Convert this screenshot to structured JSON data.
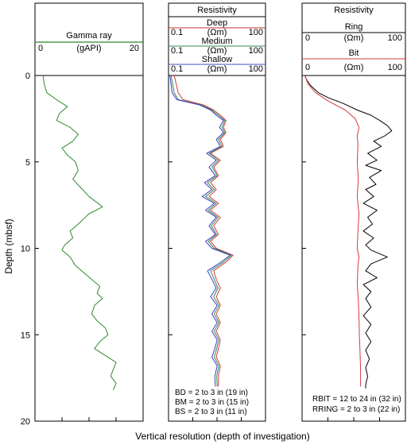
{
  "chart_data": [
    {
      "type": "line",
      "title": "Gamma ray",
      "unit": "(gAPI)",
      "xlim": [
        0,
        20
      ],
      "x_tick_labels": [
        "0",
        "20"
      ],
      "ylabel": "Depth (mbsf)",
      "ylim": [
        0,
        20
      ],
      "y_tick_labels": [
        "0",
        "5",
        "10",
        "15",
        "20"
      ],
      "series": [
        {
          "name": "Gamma ray",
          "color": "#2e8b2e",
          "points": [
            [
              1.5,
              0.0
            ],
            [
              1.7,
              0.5
            ],
            [
              2.2,
              1.0
            ],
            [
              4.0,
              1.4
            ],
            [
              6.0,
              1.8
            ],
            [
              4.5,
              2.2
            ],
            [
              4.0,
              2.6
            ],
            [
              6.5,
              3.0
            ],
            [
              8.0,
              3.4
            ],
            [
              7.0,
              3.8
            ],
            [
              5.0,
              4.2
            ],
            [
              6.0,
              4.6
            ],
            [
              7.5,
              5.0
            ],
            [
              8.0,
              5.5
            ],
            [
              7.0,
              6.0
            ],
            [
              8.5,
              6.5
            ],
            [
              10.0,
              7.0
            ],
            [
              12.5,
              7.6
            ],
            [
              10.0,
              8.0
            ],
            [
              8.0,
              8.6
            ],
            [
              6.5,
              9.0
            ],
            [
              7.0,
              9.4
            ],
            [
              5.5,
              9.8
            ],
            [
              5.0,
              10.1
            ],
            [
              6.5,
              10.5
            ],
            [
              7.5,
              11.0
            ],
            [
              9.0,
              11.4
            ],
            [
              10.5,
              11.8
            ],
            [
              12.0,
              12.2
            ],
            [
              11.5,
              12.6
            ],
            [
              12.5,
              12.9
            ],
            [
              11.0,
              13.3
            ],
            [
              10.5,
              13.8
            ],
            [
              11.5,
              14.2
            ],
            [
              13.0,
              14.6
            ],
            [
              13.5,
              15.0
            ],
            [
              12.0,
              15.4
            ],
            [
              11.0,
              15.8
            ],
            [
              13.0,
              16.2
            ],
            [
              15.0,
              16.6
            ],
            [
              14.5,
              17.0
            ],
            [
              14.0,
              17.4
            ],
            [
              15.0,
              17.8
            ],
            [
              14.5,
              18.2
            ]
          ]
        }
      ]
    },
    {
      "type": "line",
      "title": "Resistivity",
      "xscale": "log",
      "xlim": [
        0.1,
        100
      ],
      "ylim": [
        0,
        20
      ],
      "headers": [
        {
          "name": "Deep",
          "color": "#c83232",
          "unit": "(Ωm)",
          "min": "0.1",
          "max": "100"
        },
        {
          "name": "Medium",
          "color": "#2e8b57",
          "unit": "(Ωm)",
          "min": "0.1",
          "max": "100"
        },
        {
          "name": "Shallow",
          "color": "#3c4fc8",
          "unit": "(Ωm)",
          "min": "0.1",
          "max": "100"
        }
      ],
      "series": [
        {
          "name": "Deep",
          "color": "#d23c3c",
          "points": [
            [
              0.15,
              0.0
            ],
            [
              0.2,
              1.0
            ],
            [
              0.28,
              1.4
            ],
            [
              1.2,
              1.7
            ],
            [
              2.5,
              2.0
            ],
            [
              4.0,
              2.3
            ],
            [
              6.0,
              2.6
            ],
            [
              5.0,
              3.0
            ],
            [
              6.0,
              3.3
            ],
            [
              4.0,
              3.7
            ],
            [
              5.0,
              4.1
            ],
            [
              2.0,
              4.5
            ],
            [
              4.0,
              4.9
            ],
            [
              2.5,
              5.3
            ],
            [
              3.5,
              5.8
            ],
            [
              2.0,
              6.2
            ],
            [
              3.0,
              6.6
            ],
            [
              1.8,
              7.0
            ],
            [
              3.5,
              7.4
            ],
            [
              2.0,
              7.8
            ],
            [
              4.0,
              8.2
            ],
            [
              2.5,
              8.7
            ],
            [
              3.5,
              9.2
            ],
            [
              2.0,
              9.6
            ],
            [
              3.0,
              10.0
            ],
            [
              10.0,
              10.4
            ],
            [
              6.0,
              10.8
            ],
            [
              2.5,
              11.3
            ],
            [
              3.0,
              11.8
            ],
            [
              4.0,
              12.3
            ],
            [
              3.0,
              12.8
            ],
            [
              4.0,
              13.3
            ],
            [
              3.0,
              13.8
            ],
            [
              4.0,
              14.3
            ],
            [
              3.0,
              14.8
            ],
            [
              4.0,
              15.3
            ],
            [
              3.5,
              15.8
            ],
            [
              3.0,
              16.3
            ],
            [
              4.0,
              16.8
            ],
            [
              3.5,
              17.4
            ],
            [
              3.5,
              18.0
            ]
          ]
        },
        {
          "name": "Medium",
          "color": "#2e8b57",
          "points": [
            [
              0.12,
              0.0
            ],
            [
              0.15,
              1.0
            ],
            [
              0.2,
              1.4
            ],
            [
              1.0,
              1.7
            ],
            [
              2.2,
              2.0
            ],
            [
              3.5,
              2.3
            ],
            [
              5.5,
              2.6
            ],
            [
              4.5,
              3.0
            ],
            [
              5.5,
              3.3
            ],
            [
              3.5,
              3.7
            ],
            [
              4.5,
              4.1
            ],
            [
              1.8,
              4.5
            ],
            [
              3.5,
              4.9
            ],
            [
              2.2,
              5.3
            ],
            [
              3.2,
              5.8
            ],
            [
              1.6,
              6.2
            ],
            [
              2.6,
              6.6
            ],
            [
              1.4,
              7.0
            ],
            [
              3.0,
              7.4
            ],
            [
              1.7,
              7.8
            ],
            [
              3.4,
              8.2
            ],
            [
              2.1,
              8.7
            ],
            [
              3.1,
              9.2
            ],
            [
              1.7,
              9.6
            ],
            [
              2.6,
              10.0
            ],
            [
              9.0,
              10.4
            ],
            [
              5.0,
              10.8
            ],
            [
              2.0,
              11.3
            ],
            [
              2.6,
              11.8
            ],
            [
              3.4,
              12.3
            ],
            [
              2.5,
              12.8
            ],
            [
              3.6,
              13.3
            ],
            [
              2.6,
              13.8
            ],
            [
              3.6,
              14.3
            ],
            [
              2.6,
              14.8
            ],
            [
              3.6,
              15.3
            ],
            [
              3.1,
              15.8
            ],
            [
              2.6,
              16.3
            ],
            [
              3.6,
              16.8
            ],
            [
              3.1,
              17.4
            ],
            [
              3.2,
              18.0
            ]
          ]
        },
        {
          "name": "Shallow",
          "color": "#3c3cc8",
          "points": [
            [
              0.11,
              0.0
            ],
            [
              0.13,
              1.0
            ],
            [
              0.18,
              1.4
            ],
            [
              0.9,
              1.7
            ],
            [
              2.0,
              2.0
            ],
            [
              3.0,
              2.3
            ],
            [
              5.0,
              2.6
            ],
            [
              3.8,
              3.0
            ],
            [
              5.0,
              3.3
            ],
            [
              3.0,
              3.7
            ],
            [
              4.0,
              4.1
            ],
            [
              1.5,
              4.5
            ],
            [
              3.0,
              4.9
            ],
            [
              1.8,
              5.3
            ],
            [
              2.8,
              5.8
            ],
            [
              1.3,
              6.2
            ],
            [
              2.2,
              6.6
            ],
            [
              1.1,
              7.0
            ],
            [
              2.6,
              7.4
            ],
            [
              1.4,
              7.8
            ],
            [
              3.0,
              8.2
            ],
            [
              1.8,
              8.7
            ],
            [
              2.8,
              9.2
            ],
            [
              1.4,
              9.6
            ],
            [
              2.2,
              10.0
            ],
            [
              8.0,
              10.4
            ],
            [
              4.2,
              10.8
            ],
            [
              1.6,
              11.3
            ],
            [
              2.2,
              11.8
            ],
            [
              3.0,
              12.3
            ],
            [
              2.0,
              12.8
            ],
            [
              3.2,
              13.3
            ],
            [
              2.2,
              13.8
            ],
            [
              3.2,
              14.3
            ],
            [
              2.2,
              14.8
            ],
            [
              3.2,
              15.3
            ],
            [
              2.7,
              15.8
            ],
            [
              2.2,
              16.3
            ],
            [
              3.2,
              16.8
            ],
            [
              2.7,
              17.4
            ],
            [
              2.8,
              18.0
            ]
          ]
        }
      ],
      "notes": [
        "BD = 2 to 3 in (19 in)",
        "BM = 2 to 3 in (15 in)",
        "BS = 2 to 3 in (11 in)"
      ]
    },
    {
      "type": "line",
      "title": "Resistivity",
      "xscale": "log",
      "xlim": [
        0.1,
        100
      ],
      "ylim": [
        0,
        20
      ],
      "headers": [
        {
          "name": "Ring",
          "color": "#000000",
          "unit": "(Ωm)",
          "min": "0",
          "max": "100"
        },
        {
          "name": "Bit",
          "color": "#d23c3c",
          "unit": "(Ωm)",
          "min": "0",
          "max": "100"
        }
      ],
      "series": [
        {
          "name": "Ring",
          "color": "#000000",
          "points": [
            [
              0.12,
              0.0
            ],
            [
              0.14,
              0.3
            ],
            [
              0.18,
              0.6
            ],
            [
              0.3,
              1.0
            ],
            [
              0.6,
              1.3
            ],
            [
              1.5,
              1.6
            ],
            [
              4.0,
              2.0
            ],
            [
              10.0,
              2.3
            ],
            [
              18.0,
              2.6
            ],
            [
              30.0,
              2.9
            ],
            [
              40.0,
              3.2
            ],
            [
              25.0,
              3.5
            ],
            [
              12.0,
              3.8
            ],
            [
              20.0,
              4.1
            ],
            [
              8.0,
              4.5
            ],
            [
              15.0,
              4.9
            ],
            [
              7.0,
              5.2
            ],
            [
              20.0,
              5.5
            ],
            [
              9.0,
              5.9
            ],
            [
              14.0,
              6.3
            ],
            [
              7.0,
              6.6
            ],
            [
              12.0,
              7.0
            ],
            [
              6.0,
              7.4
            ],
            [
              15.0,
              7.8
            ],
            [
              8.0,
              8.2
            ],
            [
              11.0,
              8.6
            ],
            [
              6.0,
              9.0
            ],
            [
              12.0,
              9.4
            ],
            [
              7.0,
              9.8
            ],
            [
              10.0,
              10.1
            ],
            [
              30.0,
              10.5
            ],
            [
              10.0,
              10.9
            ],
            [
              7.0,
              11.3
            ],
            [
              15.0,
              11.7
            ],
            [
              6.0,
              12.1
            ],
            [
              10.0,
              12.5
            ],
            [
              7.0,
              12.9
            ],
            [
              10.0,
              13.4
            ],
            [
              6.0,
              13.9
            ],
            [
              10.0,
              14.4
            ],
            [
              7.0,
              14.9
            ],
            [
              10.0,
              15.4
            ],
            [
              7.0,
              15.9
            ],
            [
              9.0,
              16.4
            ],
            [
              7.0,
              16.9
            ],
            [
              8.0,
              17.4
            ],
            [
              7.0,
              17.9
            ],
            [
              7.0,
              18.1
            ]
          ]
        },
        {
          "name": "Bit",
          "color": "#d23c3c",
          "points": [
            [
              0.12,
              0.0
            ],
            [
              0.15,
              0.5
            ],
            [
              0.25,
              1.0
            ],
            [
              0.6,
              1.5
            ],
            [
              1.8,
              2.0
            ],
            [
              3.5,
              2.5
            ],
            [
              4.5,
              3.0
            ],
            [
              4.0,
              3.5
            ],
            [
              4.2,
              4.0
            ],
            [
              4.0,
              5.0
            ],
            [
              4.3,
              6.0
            ],
            [
              4.0,
              7.0
            ],
            [
              4.5,
              8.0
            ],
            [
              4.2,
              9.0
            ],
            [
              4.0,
              10.0
            ],
            [
              4.5,
              10.5
            ],
            [
              4.2,
              11.0
            ],
            [
              4.0,
              12.0
            ],
            [
              4.3,
              13.0
            ],
            [
              4.5,
              14.0
            ],
            [
              4.6,
              15.0
            ],
            [
              4.8,
              16.0
            ],
            [
              5.0,
              17.0
            ],
            [
              5.0,
              18.0
            ]
          ]
        }
      ],
      "notes": [
        "RBIT = 12 to 24 in (32 in)",
        "RRING = 2 to 3 in (22 in)"
      ]
    }
  ],
  "footer": "Vertical resolution (depth of investigation)"
}
